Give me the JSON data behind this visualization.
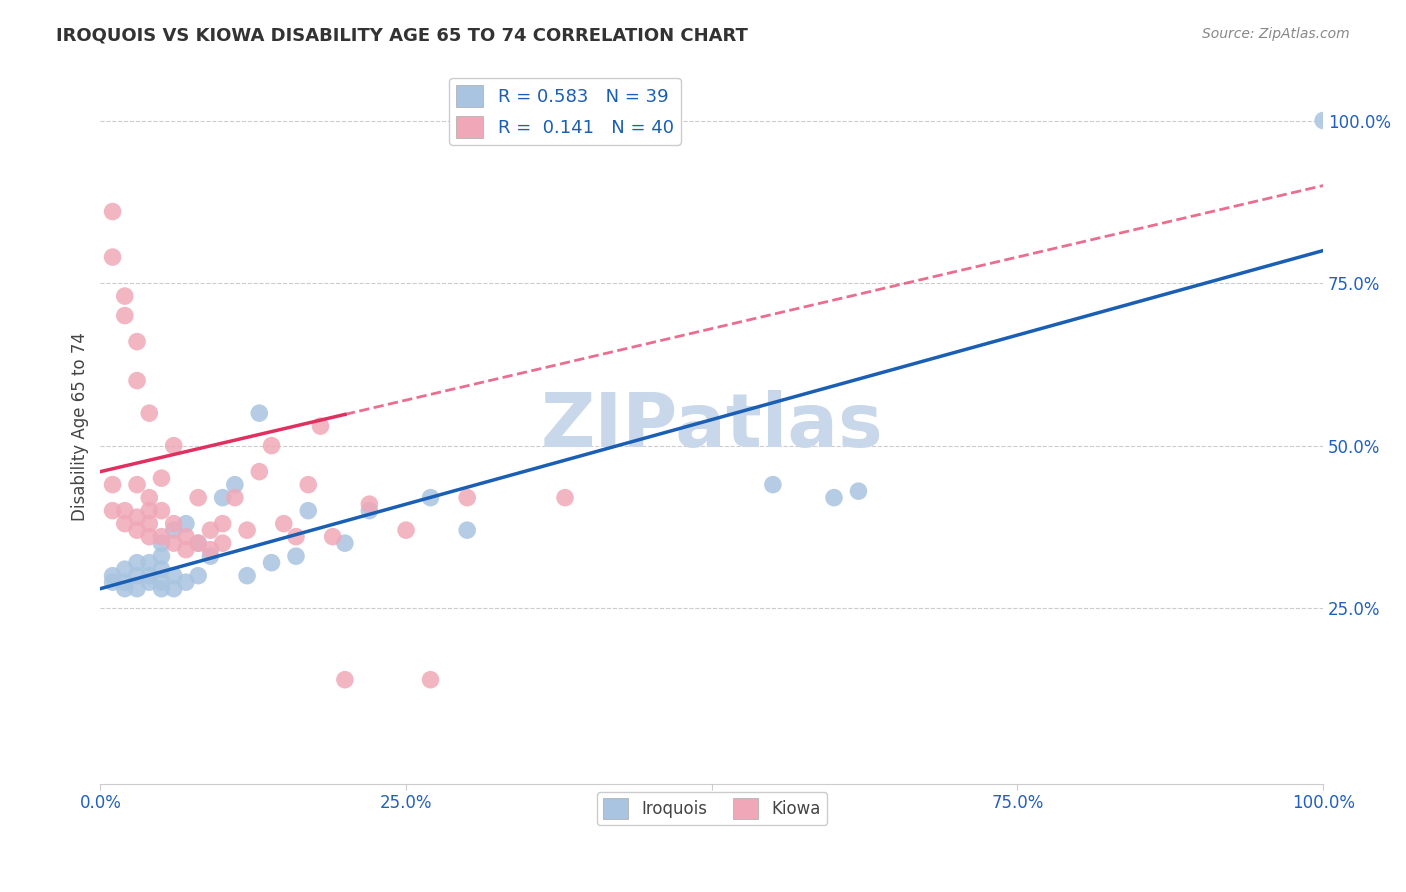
{
  "title": "IROQUOIS VS KIOWA DISABILITY AGE 65 TO 74 CORRELATION CHART",
  "source": "Source: ZipAtlas.com",
  "ylabel": "Disability Age 65 to 74",
  "xlim": [
    0.0,
    1.0
  ],
  "ylim": [
    -0.02,
    1.08
  ],
  "xticks": [
    0.0,
    0.25,
    0.5,
    0.75,
    1.0
  ],
  "xticklabels": [
    "0.0%",
    "25.0%",
    "50.0%",
    "75.0%",
    "100.0%"
  ],
  "yticks": [
    0.25,
    0.5,
    0.75,
    1.0
  ],
  "yticklabels": [
    "25.0%",
    "50.0%",
    "75.0%",
    "100.0%"
  ],
  "iroquois_color": "#a8c4e0",
  "kiowa_color": "#f0a8b8",
  "iroquois_line_color": "#1a5fb4",
  "kiowa_line_color": "#e03060",
  "legend_iroquois_R": "0.583",
  "legend_iroquois_N": "39",
  "legend_kiowa_R": "0.141",
  "legend_kiowa_N": "40",
  "watermark": "ZIPatlas",
  "watermark_color": "#c8d8ea",
  "background_color": "#ffffff",
  "grid_color": "#cccccc",
  "iroquois_x": [
    0.01,
    0.01,
    0.02,
    0.02,
    0.02,
    0.03,
    0.03,
    0.03,
    0.04,
    0.04,
    0.04,
    0.05,
    0.05,
    0.05,
    0.05,
    0.05,
    0.06,
    0.06,
    0.06,
    0.07,
    0.07,
    0.08,
    0.08,
    0.09,
    0.1,
    0.11,
    0.12,
    0.13,
    0.14,
    0.16,
    0.17,
    0.2,
    0.22,
    0.27,
    0.3,
    0.55,
    0.6,
    0.62,
    1.0
  ],
  "iroquois_y": [
    0.29,
    0.3,
    0.28,
    0.29,
    0.31,
    0.28,
    0.3,
    0.32,
    0.29,
    0.3,
    0.32,
    0.28,
    0.29,
    0.31,
    0.33,
    0.35,
    0.28,
    0.3,
    0.37,
    0.29,
    0.38,
    0.3,
    0.35,
    0.33,
    0.42,
    0.44,
    0.3,
    0.55,
    0.32,
    0.33,
    0.4,
    0.35,
    0.4,
    0.42,
    0.37,
    0.44,
    0.42,
    0.43,
    1.0
  ],
  "kiowa_x": [
    0.01,
    0.01,
    0.02,
    0.02,
    0.03,
    0.03,
    0.03,
    0.04,
    0.04,
    0.04,
    0.04,
    0.05,
    0.05,
    0.05,
    0.06,
    0.06,
    0.06,
    0.07,
    0.07,
    0.08,
    0.08,
    0.09,
    0.09,
    0.1,
    0.1,
    0.11,
    0.12,
    0.13,
    0.14,
    0.15,
    0.16,
    0.17,
    0.18,
    0.19,
    0.2,
    0.22,
    0.25,
    0.27,
    0.3,
    0.38
  ],
  "kiowa_y": [
    0.4,
    0.44,
    0.38,
    0.4,
    0.37,
    0.39,
    0.44,
    0.36,
    0.38,
    0.4,
    0.42,
    0.36,
    0.4,
    0.45,
    0.35,
    0.38,
    0.5,
    0.34,
    0.36,
    0.35,
    0.42,
    0.34,
    0.37,
    0.35,
    0.38,
    0.42,
    0.37,
    0.46,
    0.5,
    0.38,
    0.36,
    0.44,
    0.53,
    0.36,
    0.14,
    0.41,
    0.37,
    0.14,
    0.42,
    0.42
  ],
  "kiowa_high_y": [
    0.86,
    0.79,
    0.73,
    0.7,
    0.66,
    0.6,
    0.55
  ],
  "kiowa_high_x": [
    0.01,
    0.01,
    0.02,
    0.02,
    0.03,
    0.03,
    0.04
  ]
}
